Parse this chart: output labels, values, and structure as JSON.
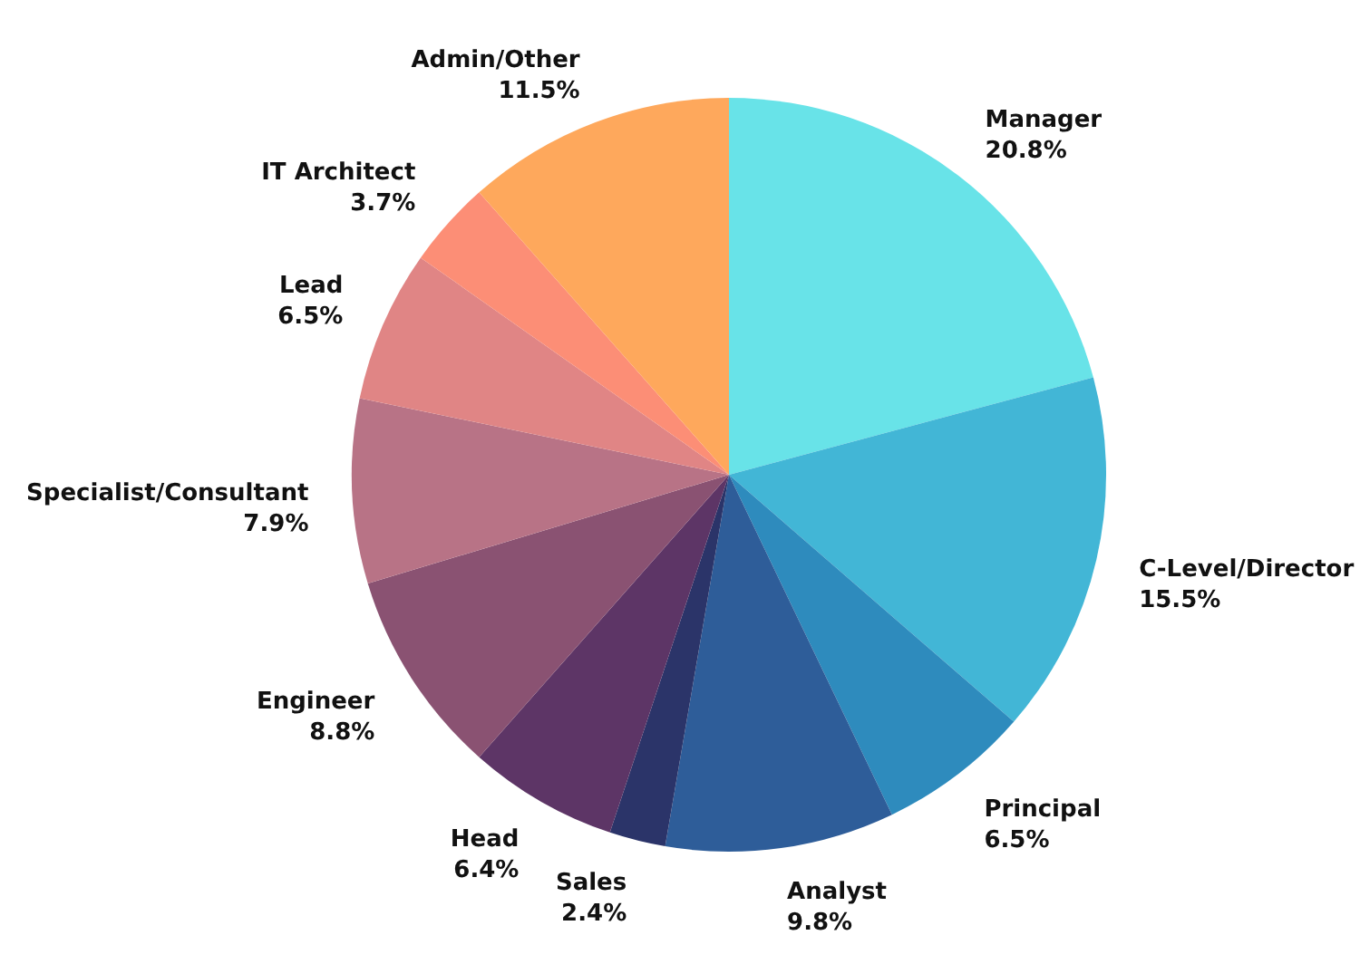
{
  "chart_data": {
    "type": "pie",
    "categories": [
      "Manager",
      "C-Level/Director",
      "Principal",
      "Analyst",
      "Sales",
      "Head",
      "Engineer",
      "Specialist/Consultant",
      "Lead",
      "IT Architect",
      "Admin/Other"
    ],
    "values": [
      20.8,
      15.5,
      6.5,
      9.8,
      2.4,
      6.4,
      8.8,
      7.9,
      6.5,
      3.7,
      11.5
    ],
    "value_labels": [
      "20.8%",
      "15.5%",
      "6.5%",
      "9.8%",
      "2.4%",
      "6.4%",
      "8.8%",
      "7.9%",
      "6.5%",
      "3.7%",
      "11.5%"
    ],
    "colors": [
      "#68e3e8",
      "#42b6d6",
      "#2e8bbd",
      "#2e5d99",
      "#2b3469",
      "#5d3566",
      "#8a5272",
      "#b87386",
      "#e08585",
      "#fc8e76",
      "#fea85c"
    ],
    "legend": false
  }
}
